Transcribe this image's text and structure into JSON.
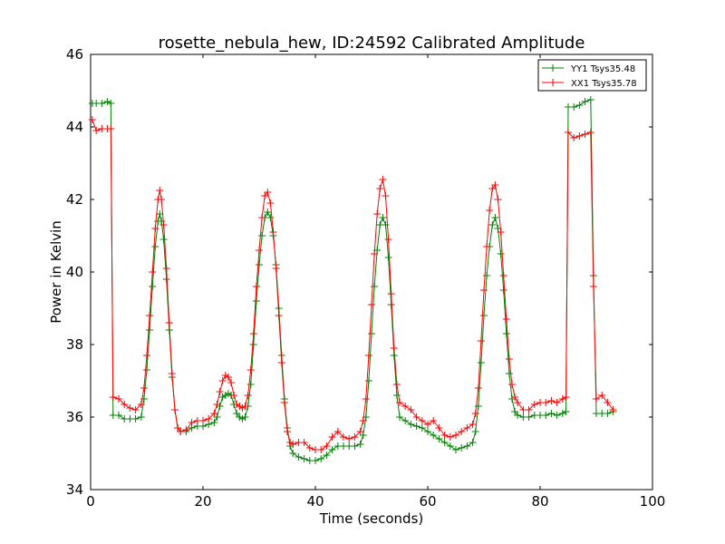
{
  "chart_data": {
    "type": "line",
    "title": "rosette_nebula_hew, ID:24592 Calibrated Amplitude",
    "xlabel": "Time (seconds)",
    "ylabel": "Power in Kelvin",
    "xlim": [
      0,
      100
    ],
    "ylim": [
      34,
      46
    ],
    "xticks": [
      0,
      20,
      40,
      60,
      80,
      100
    ],
    "yticks": [
      34,
      36,
      38,
      40,
      42,
      44,
      46
    ],
    "grid": false,
    "legend_position": "top-right",
    "marker": "+",
    "series": [
      {
        "name": "YY1 Tsys35.48",
        "color": "#008000",
        "points": [
          [
            0.3,
            44.65
          ],
          [
            1,
            44.65
          ],
          [
            2,
            44.65
          ],
          [
            3,
            44.7
          ],
          [
            3.6,
            44.65
          ],
          [
            4.0,
            36.05
          ],
          [
            5,
            36.05
          ],
          [
            6,
            35.95
          ],
          [
            7,
            35.95
          ],
          [
            8,
            35.95
          ],
          [
            9,
            36.0
          ],
          [
            9.5,
            36.5
          ],
          [
            10,
            37.3
          ],
          [
            10.5,
            38.4
          ],
          [
            11,
            39.6
          ],
          [
            11.5,
            40.7
          ],
          [
            12,
            41.4
          ],
          [
            12.3,
            41.6
          ],
          [
            12.6,
            41.4
          ],
          [
            13,
            40.9
          ],
          [
            13.5,
            39.8
          ],
          [
            14,
            38.4
          ],
          [
            14.5,
            37.1
          ],
          [
            15,
            36.2
          ],
          [
            15.5,
            35.7
          ],
          [
            16,
            35.6
          ],
          [
            17,
            35.6
          ],
          [
            18,
            35.7
          ],
          [
            19,
            35.75
          ],
          [
            20,
            35.75
          ],
          [
            21,
            35.8
          ],
          [
            22,
            35.85
          ],
          [
            22.5,
            36.0
          ],
          [
            23,
            36.3
          ],
          [
            23.5,
            36.55
          ],
          [
            24,
            36.6
          ],
          [
            24.5,
            36.65
          ],
          [
            25,
            36.6
          ],
          [
            25.5,
            36.35
          ],
          [
            26,
            36.1
          ],
          [
            26.5,
            36.0
          ],
          [
            27,
            35.95
          ],
          [
            27.5,
            36.0
          ],
          [
            28,
            36.3
          ],
          [
            28.5,
            36.9
          ],
          [
            29,
            38.0
          ],
          [
            29.5,
            39.2
          ],
          [
            30,
            40.2
          ],
          [
            30.5,
            41.0
          ],
          [
            31,
            41.5
          ],
          [
            31.5,
            41.65
          ],
          [
            32,
            41.5
          ],
          [
            32.5,
            41.0
          ],
          [
            33,
            40.2
          ],
          [
            33.5,
            39.0
          ],
          [
            34,
            37.7
          ],
          [
            34.5,
            36.5
          ],
          [
            35,
            35.7
          ],
          [
            35.5,
            35.2
          ],
          [
            36,
            35.0
          ],
          [
            37,
            34.9
          ],
          [
            38,
            34.85
          ],
          [
            39,
            34.8
          ],
          [
            40,
            34.8
          ],
          [
            41,
            34.85
          ],
          [
            42,
            34.95
          ],
          [
            43,
            35.1
          ],
          [
            44,
            35.2
          ],
          [
            45,
            35.2
          ],
          [
            46,
            35.2
          ],
          [
            47,
            35.2
          ],
          [
            48,
            35.25
          ],
          [
            48.5,
            35.5
          ],
          [
            49,
            36.0
          ],
          [
            49.5,
            37.0
          ],
          [
            50,
            38.3
          ],
          [
            50.5,
            39.6
          ],
          [
            51,
            40.6
          ],
          [
            51.5,
            41.3
          ],
          [
            52,
            41.5
          ],
          [
            52.5,
            41.3
          ],
          [
            53,
            40.4
          ],
          [
            53.5,
            39.1
          ],
          [
            54,
            37.7
          ],
          [
            54.5,
            36.6
          ],
          [
            55,
            36.0
          ],
          [
            56,
            35.9
          ],
          [
            57,
            35.8
          ],
          [
            58,
            35.75
          ],
          [
            59,
            35.7
          ],
          [
            60,
            35.6
          ],
          [
            61,
            35.5
          ],
          [
            62,
            35.4
          ],
          [
            63,
            35.3
          ],
          [
            64,
            35.2
          ],
          [
            65,
            35.1
          ],
          [
            66,
            35.15
          ],
          [
            67,
            35.2
          ],
          [
            68,
            35.3
          ],
          [
            68.5,
            35.6
          ],
          [
            69,
            36.3
          ],
          [
            69.5,
            37.5
          ],
          [
            70,
            38.8
          ],
          [
            70.5,
            39.9
          ],
          [
            71,
            40.7
          ],
          [
            71.5,
            41.3
          ],
          [
            72,
            41.5
          ],
          [
            72.5,
            41.2
          ],
          [
            73,
            40.5
          ],
          [
            73.5,
            39.5
          ],
          [
            74,
            38.3
          ],
          [
            74.5,
            37.2
          ],
          [
            75,
            36.5
          ],
          [
            75.5,
            36.15
          ],
          [
            76,
            36.05
          ],
          [
            77,
            36.0
          ],
          [
            78,
            36.0
          ],
          [
            79,
            36.05
          ],
          [
            80,
            36.05
          ],
          [
            81,
            36.05
          ],
          [
            82,
            36.1
          ],
          [
            83,
            36.05
          ],
          [
            84,
            36.1
          ],
          [
            84.6,
            36.15
          ],
          [
            85.0,
            44.55
          ],
          [
            86,
            44.55
          ],
          [
            87,
            44.6
          ],
          [
            88,
            44.7
          ],
          [
            89,
            44.75
          ],
          [
            89.5,
            39.9
          ],
          [
            90,
            36.1
          ],
          [
            91,
            36.1
          ],
          [
            92,
            36.1
          ],
          [
            93,
            36.15
          ]
        ]
      },
      {
        "name": "XX1 Tsys35.78",
        "color": "#ff0000",
        "points": [
          [
            0.3,
            44.2
          ],
          [
            1,
            43.9
          ],
          [
            2,
            43.95
          ],
          [
            3,
            43.95
          ],
          [
            3.6,
            43.95
          ],
          [
            4.0,
            36.55
          ],
          [
            5,
            36.5
          ],
          [
            6,
            36.35
          ],
          [
            7,
            36.25
          ],
          [
            8,
            36.2
          ],
          [
            9,
            36.35
          ],
          [
            9.5,
            36.8
          ],
          [
            10,
            37.7
          ],
          [
            10.5,
            38.8
          ],
          [
            11,
            40.0
          ],
          [
            11.5,
            41.2
          ],
          [
            12,
            42.0
          ],
          [
            12.3,
            42.25
          ],
          [
            12.6,
            42.0
          ],
          [
            13,
            41.3
          ],
          [
            13.5,
            40.1
          ],
          [
            14,
            38.6
          ],
          [
            14.5,
            37.2
          ],
          [
            15,
            36.2
          ],
          [
            15.5,
            35.7
          ],
          [
            16,
            35.6
          ],
          [
            17,
            35.65
          ],
          [
            18,
            35.85
          ],
          [
            19,
            35.9
          ],
          [
            20,
            35.9
          ],
          [
            21,
            35.95
          ],
          [
            22,
            36.1
          ],
          [
            22.5,
            36.35
          ],
          [
            23,
            36.7
          ],
          [
            23.5,
            37.0
          ],
          [
            24,
            37.15
          ],
          [
            24.5,
            37.1
          ],
          [
            25,
            36.95
          ],
          [
            25.5,
            36.6
          ],
          [
            26,
            36.35
          ],
          [
            26.5,
            36.3
          ],
          [
            27,
            36.25
          ],
          [
            27.5,
            36.3
          ],
          [
            28,
            36.6
          ],
          [
            28.5,
            37.3
          ],
          [
            29,
            38.3
          ],
          [
            29.5,
            39.6
          ],
          [
            30,
            40.6
          ],
          [
            30.5,
            41.5
          ],
          [
            31,
            42.1
          ],
          [
            31.5,
            42.2
          ],
          [
            32,
            41.9
          ],
          [
            32.5,
            41.1
          ],
          [
            33,
            40.1
          ],
          [
            33.5,
            38.8
          ],
          [
            34,
            37.5
          ],
          [
            34.5,
            36.4
          ],
          [
            35,
            35.6
          ],
          [
            35.5,
            35.3
          ],
          [
            36,
            35.25
          ],
          [
            37,
            35.3
          ],
          [
            38,
            35.3
          ],
          [
            39,
            35.15
          ],
          [
            40,
            35.1
          ],
          [
            41,
            35.1
          ],
          [
            42,
            35.2
          ],
          [
            43,
            35.45
          ],
          [
            44,
            35.6
          ],
          [
            45,
            35.45
          ],
          [
            46,
            35.4
          ],
          [
            47,
            35.45
          ],
          [
            48,
            35.6
          ],
          [
            48.5,
            35.9
          ],
          [
            49,
            36.5
          ],
          [
            49.5,
            37.7
          ],
          [
            50,
            39.1
          ],
          [
            50.5,
            40.5
          ],
          [
            51,
            41.6
          ],
          [
            51.5,
            42.3
          ],
          [
            52,
            42.55
          ],
          [
            52.5,
            42.1
          ],
          [
            53,
            40.9
          ],
          [
            53.5,
            39.4
          ],
          [
            54,
            37.9
          ],
          [
            54.5,
            36.9
          ],
          [
            55,
            36.4
          ],
          [
            56,
            36.3
          ],
          [
            57,
            36.2
          ],
          [
            58,
            36.0
          ],
          [
            59,
            35.9
          ],
          [
            60,
            35.8
          ],
          [
            61,
            35.9
          ],
          [
            62,
            35.7
          ],
          [
            63,
            35.5
          ],
          [
            64,
            35.45
          ],
          [
            65,
            35.5
          ],
          [
            66,
            35.6
          ],
          [
            67,
            35.7
          ],
          [
            68,
            35.8
          ],
          [
            68.5,
            36.1
          ],
          [
            69,
            36.8
          ],
          [
            69.5,
            38.1
          ],
          [
            70,
            39.5
          ],
          [
            70.5,
            40.7
          ],
          [
            71,
            41.7
          ],
          [
            71.5,
            42.3
          ],
          [
            72,
            42.4
          ],
          [
            72.5,
            42.0
          ],
          [
            73,
            41.1
          ],
          [
            73.5,
            39.9
          ],
          [
            74,
            38.7
          ],
          [
            74.5,
            37.6
          ],
          [
            75,
            36.9
          ],
          [
            75.5,
            36.55
          ],
          [
            76,
            36.4
          ],
          [
            77,
            36.2
          ],
          [
            78,
            36.2
          ],
          [
            79,
            36.35
          ],
          [
            80,
            36.4
          ],
          [
            81,
            36.4
          ],
          [
            82,
            36.45
          ],
          [
            83,
            36.4
          ],
          [
            84,
            36.5
          ],
          [
            84.6,
            36.55
          ],
          [
            85.0,
            43.85
          ],
          [
            86,
            43.7
          ],
          [
            87,
            43.75
          ],
          [
            88,
            43.8
          ],
          [
            89,
            43.85
          ],
          [
            89.5,
            39.6
          ],
          [
            90,
            36.5
          ],
          [
            91,
            36.6
          ],
          [
            92,
            36.4
          ],
          [
            93,
            36.2
          ]
        ]
      }
    ]
  }
}
